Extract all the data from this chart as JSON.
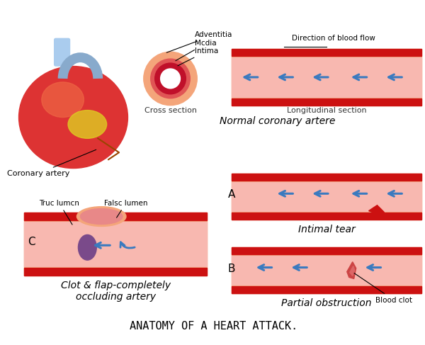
{
  "bg_color": "#ffffff",
  "title": "ANATOMY OF A HEART ATTACK.",
  "title_fontsize": 11,
  "coronary_artery_label": "Coronary artery",
  "cross_section_label": "Cross section",
  "longitudinal_label": "Longitudinal section",
  "normal_label": "Normal coronary artere",
  "label_A": "A",
  "label_B": "B",
  "label_C": "C",
  "intimal_tear_label": "Intimal tear",
  "partial_label": "Partial obstruction",
  "clot_label": "Clot & flap-completely\noccluding artery",
  "adventitia_label": "Adventitia",
  "media_label": "Mcdia",
  "intima_label": "Intima",
  "direction_label": "Direction of blood flow",
  "true_lumen_label": "Truc lumcn",
  "false_lumen_label": "Falsc lumen",
  "blood_clot_label": "Blood clot",
  "color_outer": "#f4a57a",
  "color_mid": "#e05555",
  "color_inner": "#c0102a",
  "color_lumen": "#ffffff",
  "color_pink_bg": "#f8b8b0",
  "color_dark_red": "#cc1111",
  "color_arrow": "#3a7abf",
  "color_clot": "#7a4a8a"
}
